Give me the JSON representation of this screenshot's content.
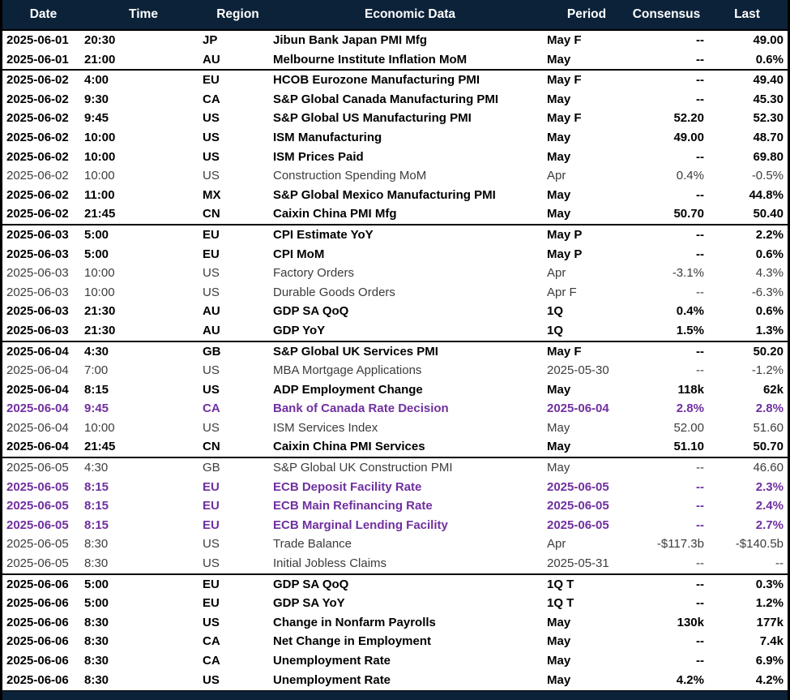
{
  "colors": {
    "header_bg": "#0b2239",
    "highlight_purple": "#7030a0",
    "muted_gray": "#3c3c3c",
    "text_black": "#000000"
  },
  "table": {
    "columns": [
      "Date",
      "Time",
      "Region",
      "Economic Data",
      "Period",
      "Consensus",
      "Last"
    ],
    "groups": [
      {
        "date": "2025-06-01",
        "rows": [
          {
            "date": "2025-06-01",
            "time": "20:30",
            "region": "JP",
            "event": "Jibun Bank Japan PMI Mfg",
            "period": "May F",
            "consensus": "--",
            "last": "49.00",
            "style": "bold"
          },
          {
            "date": "2025-06-01",
            "time": "21:00",
            "region": "AU",
            "event": "Melbourne Institute Inflation MoM",
            "period": "May",
            "consensus": "--",
            "last": "0.6%",
            "style": "bold"
          }
        ]
      },
      {
        "date": "2025-06-02",
        "rows": [
          {
            "date": "2025-06-02",
            "time": "4:00",
            "region": "EU",
            "event": "HCOB Eurozone Manufacturing PMI",
            "period": "May F",
            "consensus": "--",
            "last": "49.40",
            "style": "bold"
          },
          {
            "date": "2025-06-02",
            "time": "9:30",
            "region": "CA",
            "event": "S&P Global Canada Manufacturing PMI",
            "period": "May",
            "consensus": "--",
            "last": "45.30",
            "style": "bold"
          },
          {
            "date": "2025-06-02",
            "time": "9:45",
            "region": "US",
            "event": "S&P Global US Manufacturing PMI",
            "period": "May F",
            "consensus": "52.20",
            "last": "52.30",
            "style": "bold"
          },
          {
            "date": "2025-06-02",
            "time": "10:00",
            "region": "US",
            "event": "ISM Manufacturing",
            "period": "May",
            "consensus": "49.00",
            "last": "48.70",
            "style": "bold"
          },
          {
            "date": "2025-06-02",
            "time": "10:00",
            "region": "US",
            "event": "ISM Prices Paid",
            "period": "May",
            "consensus": "--",
            "last": "69.80",
            "style": "bold"
          },
          {
            "date": "2025-06-02",
            "time": "10:00",
            "region": "US",
            "event": "Construction Spending MoM",
            "period": "Apr",
            "consensus": "0.4%",
            "last": "-0.5%",
            "style": "normal"
          },
          {
            "date": "2025-06-02",
            "time": "11:00",
            "region": "MX",
            "event": "S&P Global Mexico Manufacturing PMI",
            "period": "May",
            "consensus": "--",
            "last": "44.8%",
            "style": "bold"
          },
          {
            "date": "2025-06-02",
            "time": "21:45",
            "region": "CN",
            "event": "Caixin China PMI Mfg",
            "period": "May",
            "consensus": "50.70",
            "last": "50.40",
            "style": "bold"
          }
        ]
      },
      {
        "date": "2025-06-03",
        "rows": [
          {
            "date": "2025-06-03",
            "time": "5:00",
            "region": "EU",
            "event": "CPI Estimate YoY",
            "period": "May P",
            "consensus": "--",
            "last": "2.2%",
            "style": "bold"
          },
          {
            "date": "2025-06-03",
            "time": "5:00",
            "region": "EU",
            "event": "CPI MoM",
            "period": "May P",
            "consensus": "--",
            "last": "0.6%",
            "style": "bold"
          },
          {
            "date": "2025-06-03",
            "time": "10:00",
            "region": "US",
            "event": "Factory Orders",
            "period": "Apr",
            "consensus": "-3.1%",
            "last": "4.3%",
            "style": "normal"
          },
          {
            "date": "2025-06-03",
            "time": "10:00",
            "region": "US",
            "event": "Durable Goods Orders",
            "period": "Apr F",
            "consensus": "--",
            "last": "-6.3%",
            "style": "normal"
          },
          {
            "date": "2025-06-03",
            "time": "21:30",
            "region": "AU",
            "event": "GDP SA QoQ",
            "period": "1Q",
            "consensus": "0.4%",
            "last": "0.6%",
            "style": "bold"
          },
          {
            "date": "2025-06-03",
            "time": "21:30",
            "region": "AU",
            "event": "GDP YoY",
            "period": "1Q",
            "consensus": "1.5%",
            "last": "1.3%",
            "style": "bold"
          }
        ]
      },
      {
        "date": "2025-06-04",
        "rows": [
          {
            "date": "2025-06-04",
            "time": "4:30",
            "region": "GB",
            "event": "S&P Global UK Services PMI",
            "period": "May F",
            "consensus": "--",
            "last": "50.20",
            "style": "bold"
          },
          {
            "date": "2025-06-04",
            "time": "7:00",
            "region": "US",
            "event": "MBA Mortgage Applications",
            "period": "2025-05-30",
            "consensus": "--",
            "last": "-1.2%",
            "style": "normal"
          },
          {
            "date": "2025-06-04",
            "time": "8:15",
            "region": "US",
            "event": "ADP Employment Change",
            "period": "May",
            "consensus": "118k",
            "last": "62k",
            "style": "bold"
          },
          {
            "date": "2025-06-04",
            "time": "9:45",
            "region": "CA",
            "event": "Bank of Canada Rate Decision",
            "period": "2025-06-04",
            "consensus": "2.8%",
            "last": "2.8%",
            "style": "purple"
          },
          {
            "date": "2025-06-04",
            "time": "10:00",
            "region": "US",
            "event": "ISM Services Index",
            "period": "May",
            "consensus": "52.00",
            "last": "51.60",
            "style": "normal"
          },
          {
            "date": "2025-06-04",
            "time": "21:45",
            "region": "CN",
            "event": "Caixin China PMI Services",
            "period": "May",
            "consensus": "51.10",
            "last": "50.70",
            "style": "bold"
          }
        ]
      },
      {
        "date": "2025-06-05",
        "rows": [
          {
            "date": "2025-06-05",
            "time": "4:30",
            "region": "GB",
            "event": "S&P Global UK Construction PMI",
            "period": "May",
            "consensus": "--",
            "last": "46.60",
            "style": "normal"
          },
          {
            "date": "2025-06-05",
            "time": "8:15",
            "region": "EU",
            "event": "ECB Deposit Facility Rate",
            "period": "2025-06-05",
            "consensus": "--",
            "last": "2.3%",
            "style": "purple"
          },
          {
            "date": "2025-06-05",
            "time": "8:15",
            "region": "EU",
            "event": "ECB Main Refinancing Rate",
            "period": "2025-06-05",
            "consensus": "--",
            "last": "2.4%",
            "style": "purple"
          },
          {
            "date": "2025-06-05",
            "time": "8:15",
            "region": "EU",
            "event": "ECB Marginal Lending Facility",
            "period": "2025-06-05",
            "consensus": "--",
            "last": "2.7%",
            "style": "purple"
          },
          {
            "date": "2025-06-05",
            "time": "8:30",
            "region": "US",
            "event": "Trade Balance",
            "period": "Apr",
            "consensus": "-$117.3b",
            "last": "-$140.5b",
            "style": "normal"
          },
          {
            "date": "2025-06-05",
            "time": "8:30",
            "region": "US",
            "event": "Initial Jobless Claims",
            "period": "2025-05-31",
            "consensus": "--",
            "last": "--",
            "style": "normal"
          }
        ]
      },
      {
        "date": "2025-06-06",
        "rows": [
          {
            "date": "2025-06-06",
            "time": "5:00",
            "region": "EU",
            "event": "GDP SA QoQ",
            "period": "1Q T",
            "consensus": "--",
            "last": "0.3%",
            "style": "bold"
          },
          {
            "date": "2025-06-06",
            "time": "5:00",
            "region": "EU",
            "event": "GDP SA YoY",
            "period": "1Q T",
            "consensus": "--",
            "last": "1.2%",
            "style": "bold"
          },
          {
            "date": "2025-06-06",
            "time": "8:30",
            "region": "US",
            "event": "Change in Nonfarm Payrolls",
            "period": "May",
            "consensus": "130k",
            "last": "177k",
            "style": "bold"
          },
          {
            "date": "2025-06-06",
            "time": "8:30",
            "region": "CA",
            "event": "Net Change in Employment",
            "period": "May",
            "consensus": "--",
            "last": "7.4k",
            "style": "bold"
          },
          {
            "date": "2025-06-06",
            "time": "8:30",
            "region": "CA",
            "event": "Unemployment Rate",
            "period": "May",
            "consensus": "--",
            "last": "6.9%",
            "style": "bold"
          },
          {
            "date": "2025-06-06",
            "time": "8:30",
            "region": "US",
            "event": "Unemployment Rate",
            "period": "May",
            "consensus": "4.2%",
            "last": "4.2%",
            "style": "bold"
          }
        ]
      }
    ]
  }
}
